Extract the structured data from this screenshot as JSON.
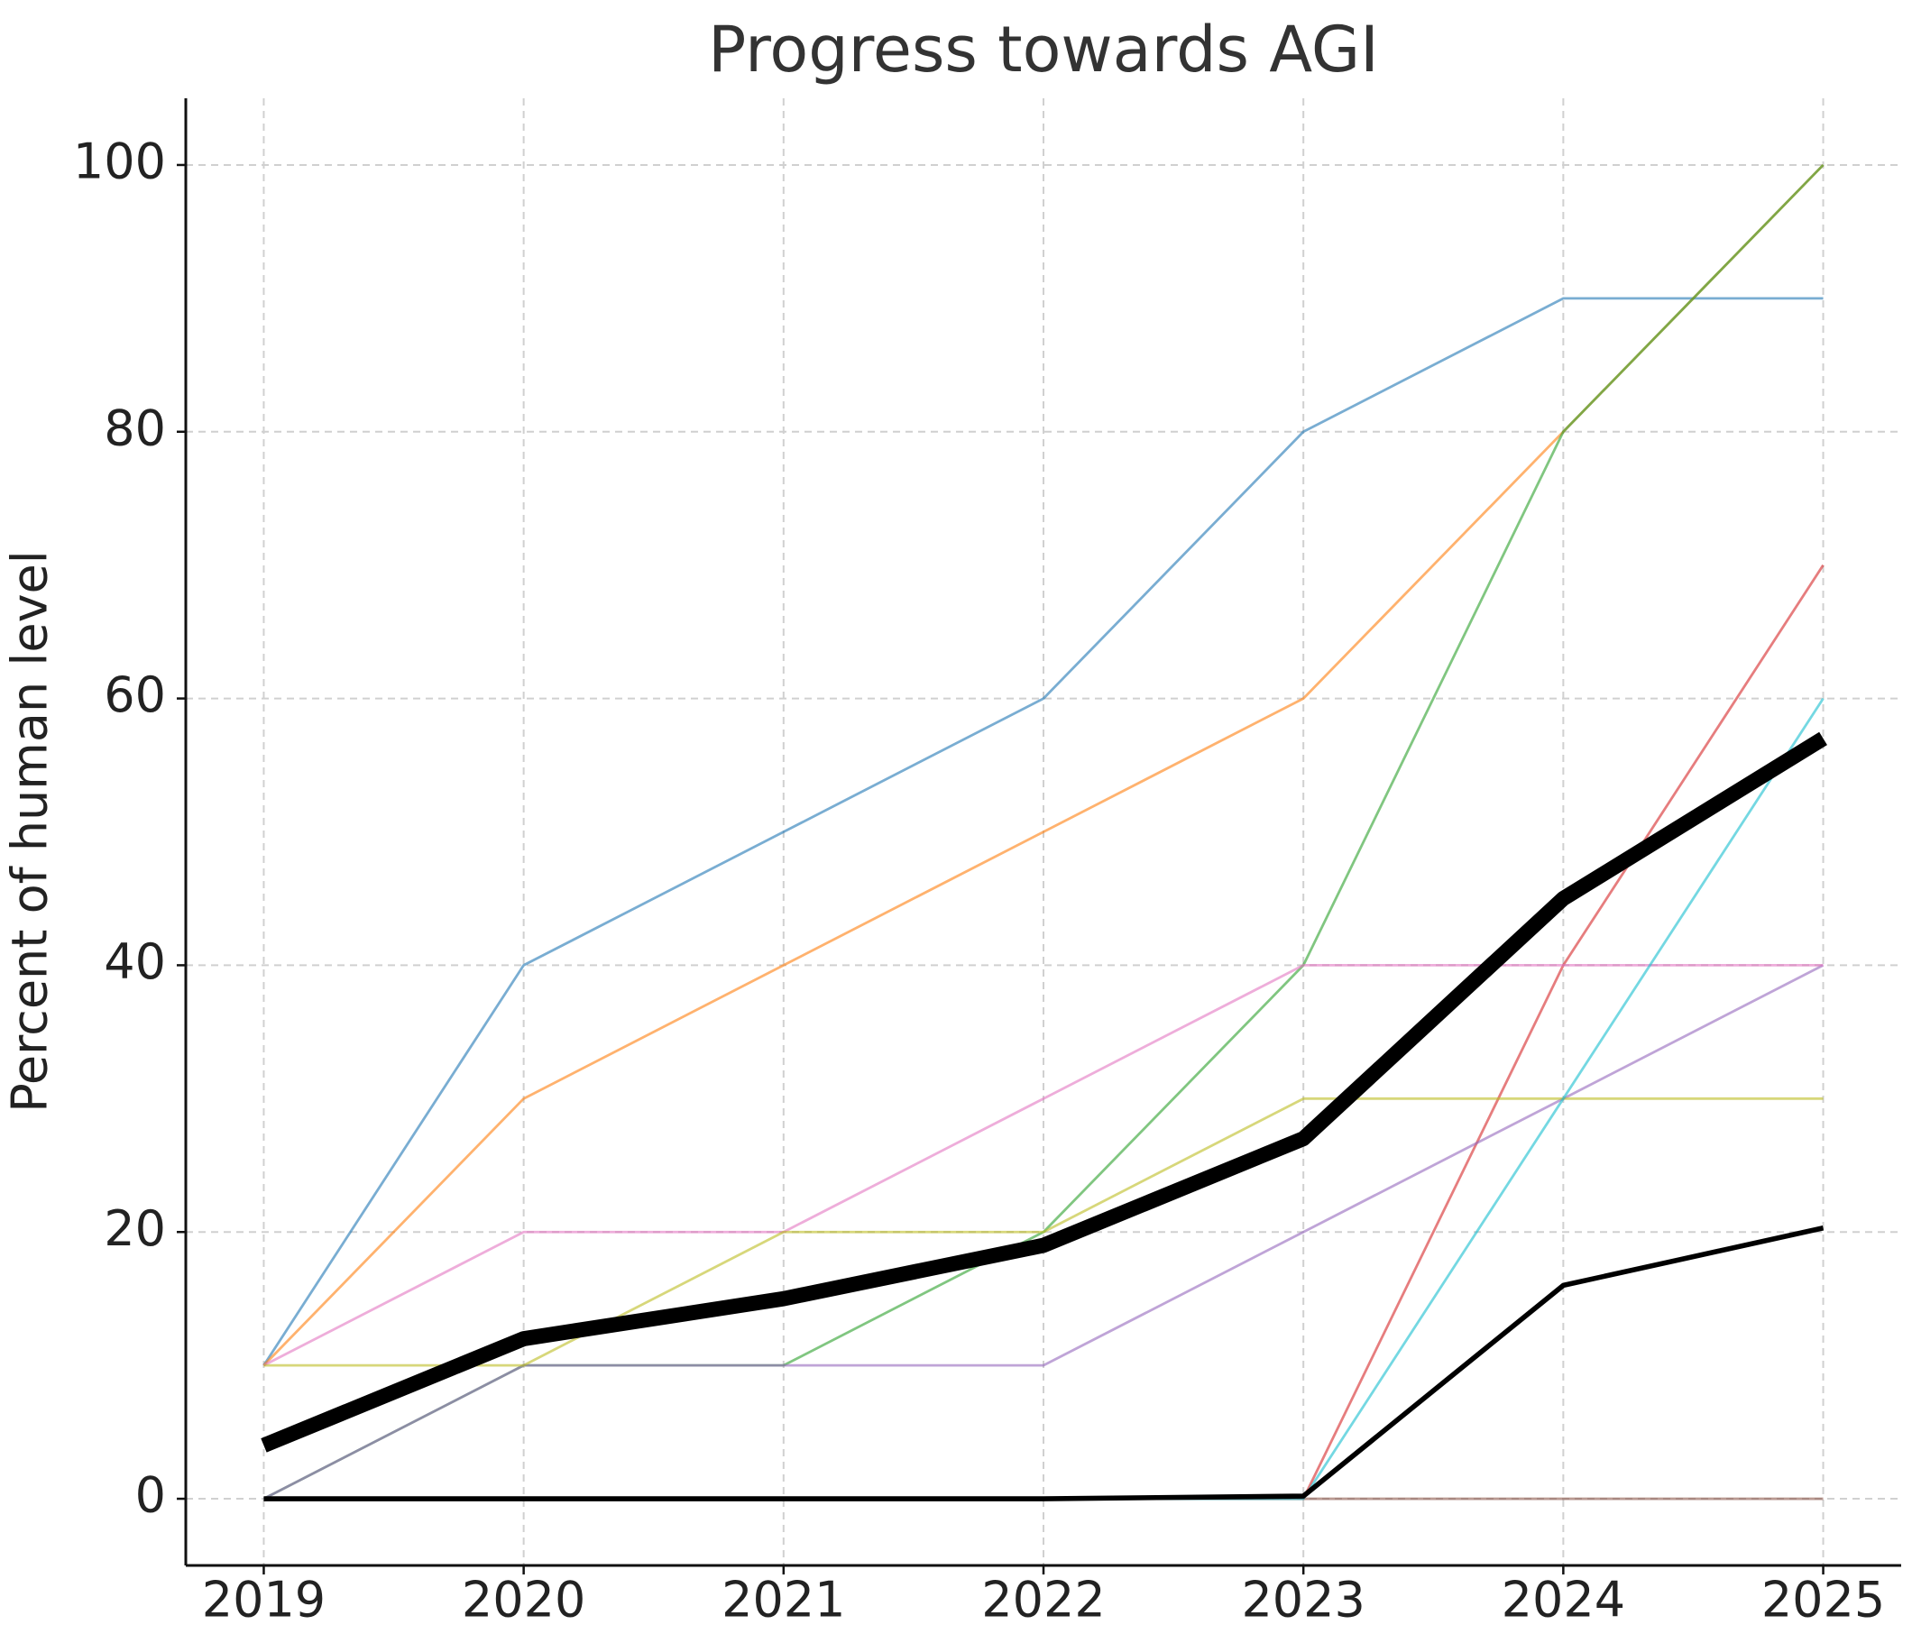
{
  "chart_data": {
    "type": "line",
    "title": "Progress towards AGI",
    "y_label": "Percent of human level",
    "x": [
      2019,
      2020,
      2021,
      2022,
      2023,
      2024,
      2025
    ],
    "xlim": [
      2018.7,
      2025.3
    ],
    "xticks": [
      2019,
      2020,
      2021,
      2022,
      2023,
      2024,
      2025
    ],
    "ylim": [
      -5,
      105
    ],
    "yticks": [
      0,
      20,
      40,
      60,
      80,
      100
    ],
    "grid": true,
    "alpha": 0.6,
    "series": [
      {
        "color": "#1f77b4",
        "linewidth": 2,
        "values": [
          10,
          40,
          50,
          60,
          80,
          90,
          90
        ]
      },
      {
        "color": "#ff7f0e",
        "linewidth": 2,
        "values": [
          10,
          30,
          40,
          50,
          60,
          80,
          100
        ]
      },
      {
        "color": "#2ca02c",
        "linewidth": 2,
        "values": [
          0,
          10,
          10,
          20,
          40,
          80,
          100
        ]
      },
      {
        "color": "#d62728",
        "linewidth": 2,
        "values": [
          0,
          0,
          0,
          0,
          0,
          40,
          70
        ]
      },
      {
        "color": "#9467bd",
        "linewidth": 2,
        "values": [
          0,
          10,
          10,
          10,
          20,
          30,
          40
        ]
      },
      {
        "color": "#8c564b",
        "linewidth": 2,
        "values": [
          0,
          0,
          0,
          0,
          0,
          0,
          0
        ]
      },
      {
        "color": "#e377c2",
        "linewidth": 2,
        "values": [
          10,
          20,
          20,
          30,
          40,
          40,
          40
        ]
      },
      {
        "color": "#bcbd22",
        "linewidth": 2,
        "values": [
          10,
          10,
          20,
          20,
          30,
          30,
          30
        ]
      },
      {
        "color": "#17becf",
        "linewidth": 2,
        "values": [
          0,
          0,
          0,
          0,
          0,
          30,
          60
        ]
      },
      {
        "color": "#000000",
        "linewidth": 4,
        "values": [
          0,
          0,
          0,
          0,
          0.2,
          16,
          20.3
        ]
      },
      {
        "color": "#000000",
        "linewidth": 12,
        "values": [
          4,
          12,
          15,
          19,
          27,
          45,
          57
        ]
      }
    ]
  }
}
